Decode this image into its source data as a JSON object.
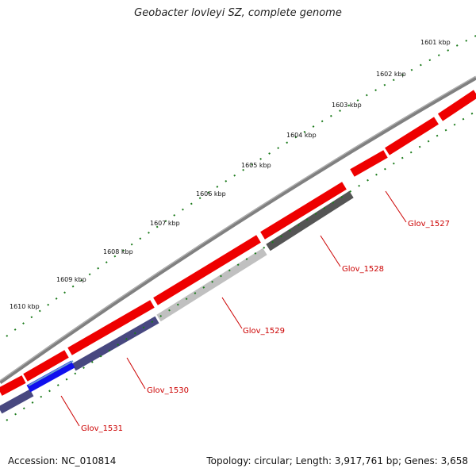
{
  "title": "Geobacter lovleyi SZ, complete genome",
  "footer": {
    "accession": "Accession: NC_010814",
    "stats": "Topology: circular; Length: 3,917,761 bp; Genes: 3,658"
  },
  "kbp_labels": [
    "1601 kbp",
    "1602 kbp",
    "1603 kbp",
    "1604 kbp",
    "1605 kbp",
    "1606 kbp",
    "1607 kbp",
    "1608 kbp",
    "1609 kbp",
    "1610 kbp"
  ],
  "genes": [
    "Glov_1527",
    "Glov_1528",
    "Glov_1529",
    "Glov_1530",
    "Glov_1531"
  ],
  "colors": {
    "forward_gene": "#ff0000",
    "backbone": "#808080",
    "tick": "#1a7a1a",
    "label": "#cc0000",
    "gene_1528": "#555555",
    "gene_1529": "#c0c0c0",
    "gene_1530": "#484880",
    "gene_1531": "#1010ee"
  }
}
